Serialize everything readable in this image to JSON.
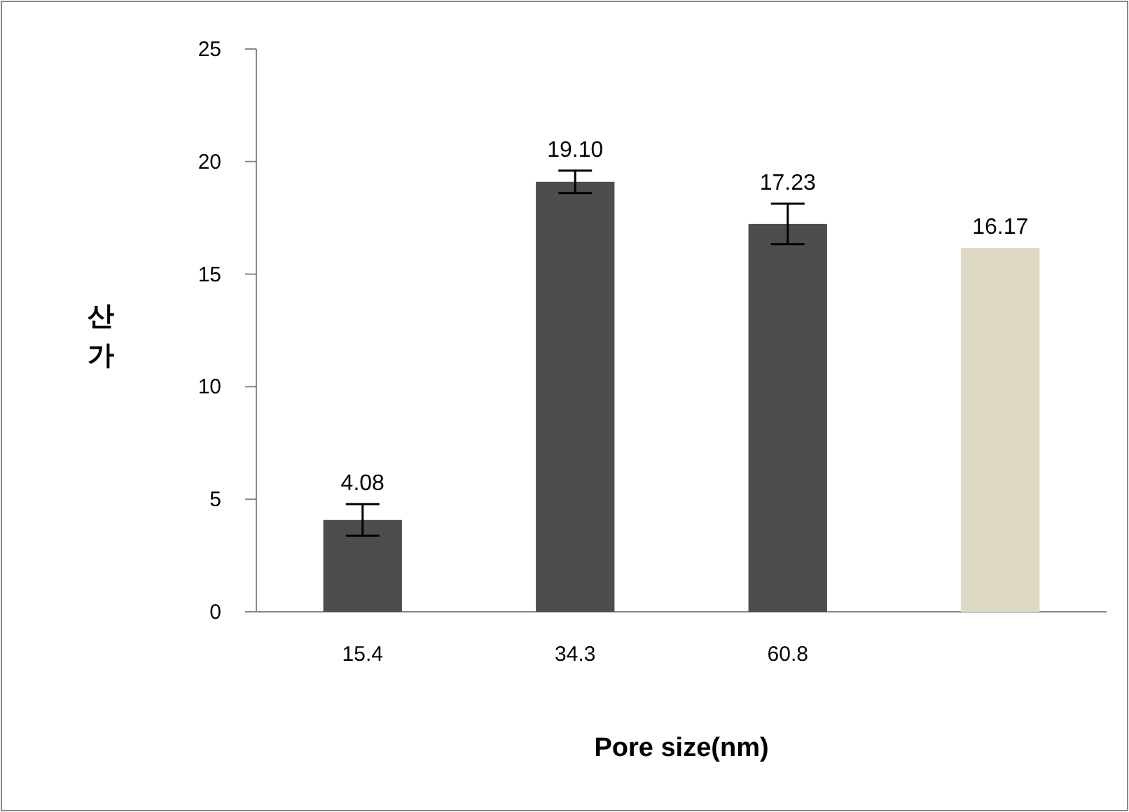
{
  "chart_data": {
    "type": "bar",
    "xlabel": "Pore size(nm)",
    "ylabel": "산가",
    "categories": [
      "15.4",
      "34.3",
      "60.8",
      null
    ],
    "values": [
      4.08,
      19.1,
      17.23,
      16.17
    ],
    "colors": [
      "#4d4d4d",
      "#4d4d4d",
      "#4d4d4d",
      "#ddd9c3"
    ],
    "errors": [
      0.7,
      0.5,
      0.9,
      null
    ],
    "value_labels": [
      "4.08",
      "19.10",
      "17.23",
      "16.17"
    ],
    "ylim": [
      0,
      25
    ],
    "yticks": [
      0,
      5,
      10,
      15,
      20,
      25
    ]
  }
}
